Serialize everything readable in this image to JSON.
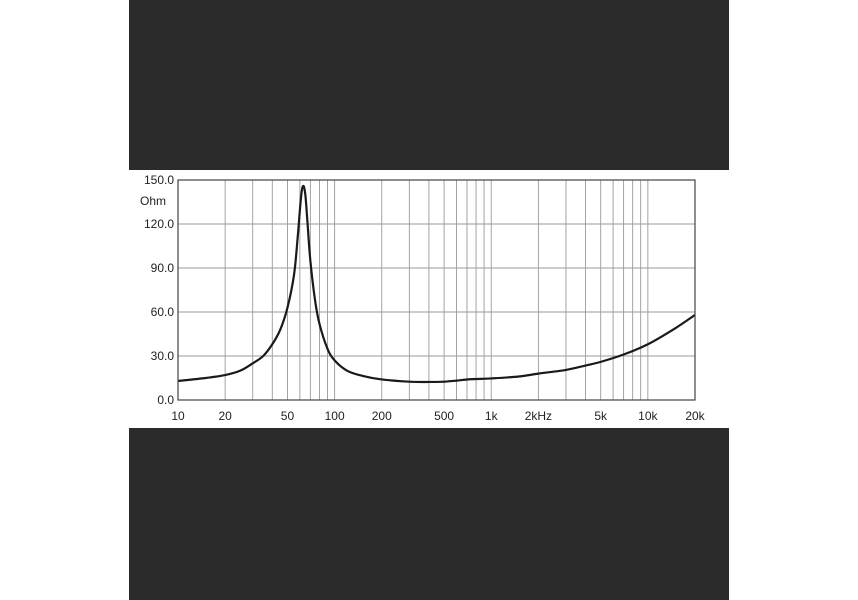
{
  "chart_data": {
    "type": "line",
    "title": "",
    "xlabel": "",
    "ylabel": "Ohm",
    "x_scale": "log",
    "xlim": [
      10,
      20000
    ],
    "ylim": [
      0,
      150
    ],
    "grid": true,
    "y_ticks": [
      {
        "value": 0,
        "label": "0.0"
      },
      {
        "value": 30,
        "label": "30.0"
      },
      {
        "value": 60,
        "label": "60.0"
      },
      {
        "value": 90,
        "label": "90.0"
      },
      {
        "value": 120,
        "label": "120.0"
      },
      {
        "value": 150,
        "label": "150.0"
      }
    ],
    "x_ticks": [
      {
        "value": 10,
        "label": "10"
      },
      {
        "value": 20,
        "label": "20"
      },
      {
        "value": 50,
        "label": "50"
      },
      {
        "value": 100,
        "label": "100"
      },
      {
        "value": 200,
        "label": "200"
      },
      {
        "value": 500,
        "label": "500"
      },
      {
        "value": 1000,
        "label": "1k"
      },
      {
        "value": 2000,
        "label": "2kHz"
      },
      {
        "value": 5000,
        "label": "5k"
      },
      {
        "value": 10000,
        "label": "10k"
      },
      {
        "value": 20000,
        "label": "20k"
      }
    ],
    "x_gridlines": [
      10,
      20,
      30,
      40,
      50,
      60,
      70,
      80,
      90,
      100,
      200,
      300,
      400,
      500,
      600,
      700,
      800,
      900,
      1000,
      2000,
      3000,
      4000,
      5000,
      6000,
      7000,
      8000,
      9000,
      10000,
      20000
    ],
    "series": [
      {
        "color": "#1a1a1a",
        "x": [
          10,
          15,
          20,
          25,
          30,
          35,
          40,
          45,
          50,
          55,
          58,
          61,
          63,
          65,
          67,
          70,
          75,
          80,
          90,
          100,
          120,
          150,
          200,
          300,
          400,
          500,
          600,
          700,
          800,
          1000,
          1500,
          2000,
          3000,
          4000,
          5000,
          7000,
          10000,
          15000,
          20000
        ],
        "y": [
          13,
          15,
          17,
          20,
          25,
          30,
          38,
          48,
          63,
          85,
          110,
          138,
          146,
          140,
          122,
          95,
          68,
          52,
          35,
          27,
          20,
          16.5,
          14,
          12.5,
          12.3,
          12.5,
          13.2,
          14,
          14.3,
          14.7,
          16,
          18,
          20.5,
          23.5,
          26,
          31,
          38,
          49,
          58
        ]
      }
    ]
  }
}
